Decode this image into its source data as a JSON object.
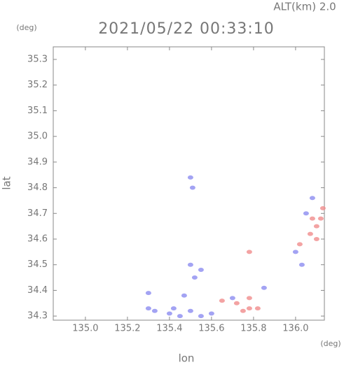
{
  "chart_data": {
    "type": "scatter",
    "title": "2021/05/22 00:33:10",
    "subtitle": "ALT(km) 2.0",
    "y_unit": "(deg)",
    "x_unit": "(deg)",
    "x_label": "lon",
    "y_label": "lat",
    "xlim": [
      134.847,
      136.137
    ],
    "ylim": [
      34.284,
      35.349
    ],
    "xticks": [
      {
        "value": 135.0,
        "label": "135.0"
      },
      135.2,
      135.4,
      135.6,
      135.8,
      {
        "value": 136.0,
        "label": "136.0"
      }
    ],
    "yticks": [
      34.3,
      34.4,
      34.5,
      34.6,
      34.7,
      34.8,
      34.9,
      {
        "value": 35.0,
        "label": "35.0"
      },
      35.1,
      35.2,
      35.3
    ],
    "series": [
      {
        "color": "#8c8cf0",
        "x": [
          135.3,
          135.33,
          135.42,
          135.4,
          135.45,
          135.5,
          135.55,
          135.6,
          135.5,
          135.52,
          135.55,
          135.5,
          135.51,
          135.7,
          135.85,
          136.0,
          136.03,
          136.05,
          136.08,
          135.3,
          135.47
        ],
        "values": [
          34.33,
          34.32,
          34.33,
          34.31,
          34.3,
          34.32,
          34.3,
          34.31,
          34.5,
          34.45,
          34.48,
          34.84,
          34.8,
          34.37,
          34.41,
          34.55,
          34.5,
          34.7,
          34.76,
          34.39,
          34.38
        ]
      },
      {
        "color": "#f08c8c",
        "x": [
          135.65,
          135.72,
          135.78,
          135.78,
          135.75,
          135.82,
          136.07,
          136.1,
          136.12,
          136.13,
          136.08,
          136.1,
          136.02,
          135.78
        ],
        "values": [
          34.36,
          34.35,
          34.37,
          34.33,
          34.32,
          34.33,
          34.62,
          34.65,
          34.68,
          34.72,
          34.68,
          34.6,
          34.58,
          34.55
        ]
      }
    ]
  }
}
